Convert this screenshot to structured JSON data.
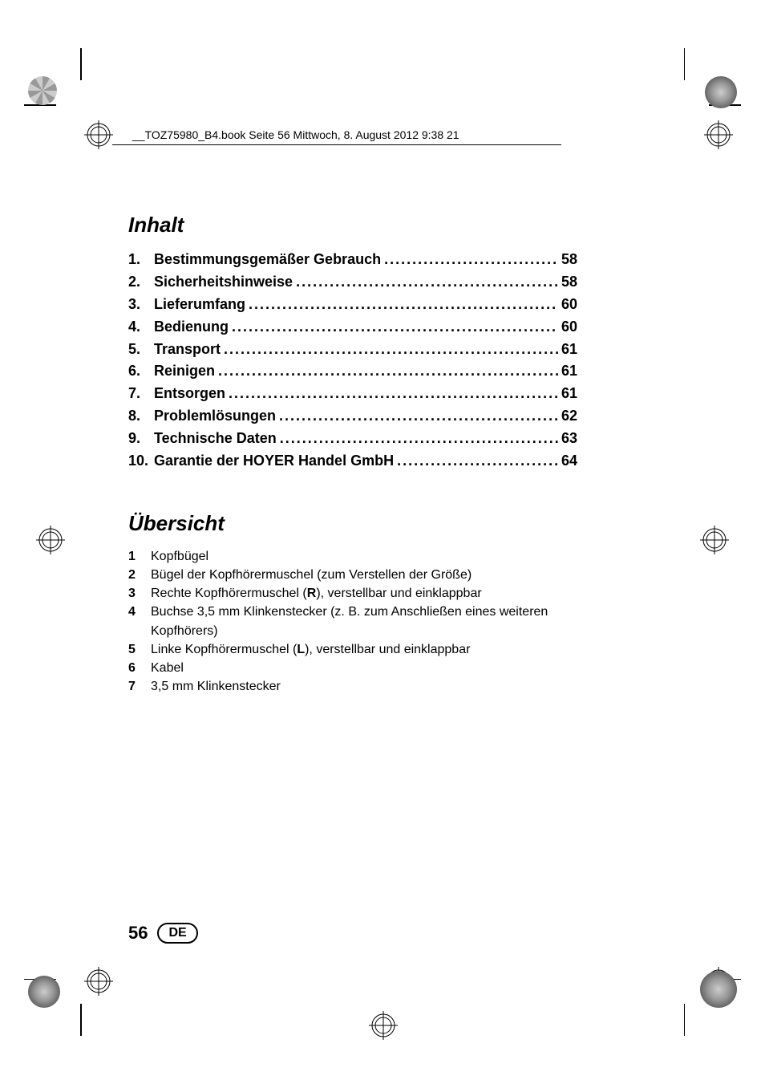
{
  "meta": {
    "header_text": "__TOZ75980_B4.book  Seite 56  Mittwoch, 8. August 2012  9:38 21"
  },
  "toc": {
    "title": "Inhalt",
    "items": [
      {
        "num": "1.",
        "label": "Bestimmungsgemäßer Gebrauch",
        "page": "58"
      },
      {
        "num": "2.",
        "label": "Sicherheitshinweise",
        "page": "58"
      },
      {
        "num": "3.",
        "label": "Lieferumfang",
        "page": "60"
      },
      {
        "num": "4.",
        "label": "Bedienung",
        "page": "60"
      },
      {
        "num": "5.",
        "label": "Transport",
        "page": "61"
      },
      {
        "num": "6.",
        "label": "Reinigen",
        "page": "61"
      },
      {
        "num": "7.",
        "label": "Entsorgen",
        "page": "61"
      },
      {
        "num": "8.",
        "label": "Problemlösungen",
        "page": "62"
      },
      {
        "num": "9.",
        "label": "Technische Daten",
        "page": "63"
      },
      {
        "num": "10.",
        "label": "Garantie der HOYER Handel GmbH",
        "page": "64"
      }
    ]
  },
  "overview": {
    "title": "Übersicht",
    "items": [
      {
        "num": "1",
        "text": "Kopfbügel"
      },
      {
        "num": "2",
        "text": "Bügel der Kopfhörermuschel (zum Verstellen der Größe)"
      },
      {
        "num": "3",
        "prefix": "Rechte Kopfhörermuschel (",
        "bold": "R",
        "suffix": "), verstellbar und einklappbar"
      },
      {
        "num": "4",
        "text": "Buchse 3,5 mm Klinkenstecker (z. B. zum Anschließen eines weiteren Kopfhörers)"
      },
      {
        "num": "5",
        "prefix": "Linke Kopfhörermuschel (",
        "bold": "L",
        "suffix": "), verstellbar und einklappbar"
      },
      {
        "num": "6",
        "text": "Kabel"
      },
      {
        "num": "7",
        "text": "3,5 mm Klinkenstecker"
      }
    ]
  },
  "footer": {
    "page": "56",
    "lang": "DE"
  },
  "style": {
    "page_bg": "#ffffff",
    "text_color": "#000000",
    "title_fontsize": 26,
    "toc_fontsize": 18,
    "body_fontsize": 16,
    "footer_fontsize": 22
  }
}
